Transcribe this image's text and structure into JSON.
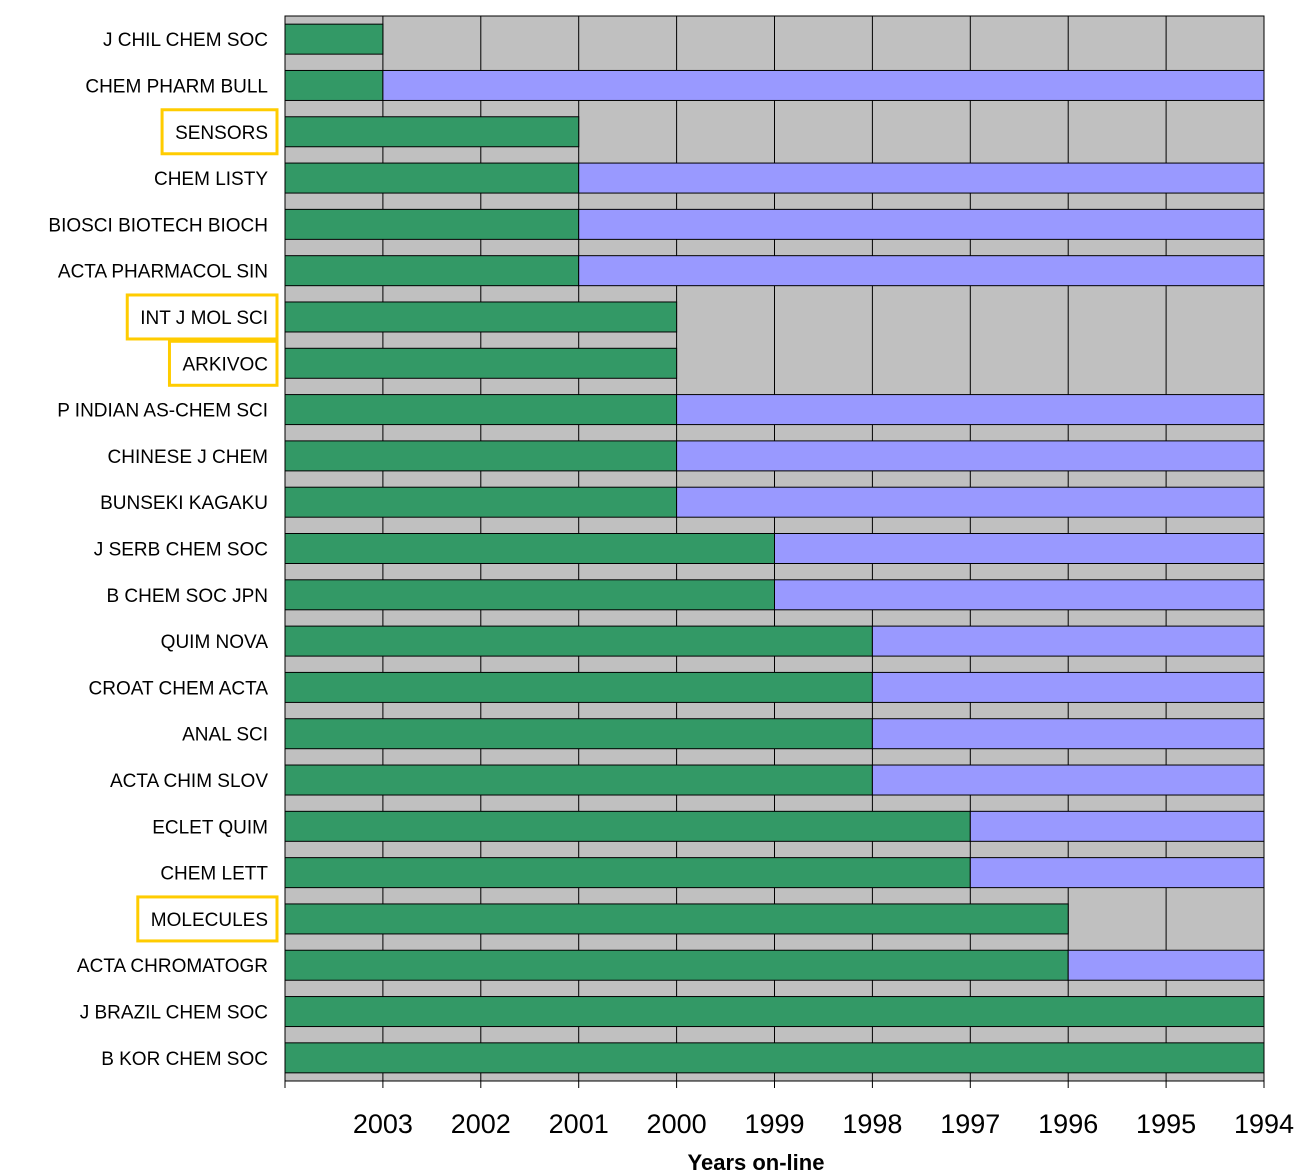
{
  "chart_data": {
    "type": "bar",
    "orientation": "horizontal",
    "title": "",
    "xlabel": "Years on-line",
    "ylabel": "",
    "x_ticks": [
      "2003",
      "2002",
      "2001",
      "2000",
      "1999",
      "1998",
      "1997",
      "1996",
      "1995",
      "1994"
    ],
    "xlim": [
      2004,
      1994
    ],
    "grid": true,
    "colors": {
      "plot_background": "#c0c0c0",
      "open_access": "#339966",
      "non_open_access": "#9999ff",
      "highlight_box": "#ffcc00"
    },
    "categories": [
      "J CHIL CHEM SOC",
      "CHEM PHARM BULL",
      "SENSORS",
      "CHEM LISTY",
      "BIOSCI BIOTECH BIOCH",
      "ACTA PHARMACOL SIN",
      "INT J MOL SCI",
      "ARKIVOC",
      "P INDIAN AS-CHEM SCI",
      "CHINESE J CHEM",
      "BUNSEKI KAGAKU",
      "J SERB CHEM SOC",
      "B CHEM SOC JPN",
      "QUIM NOVA",
      "CROAT CHEM ACTA",
      "ANAL SCI",
      "ACTA CHIM SLOV",
      "ECLET QUIM",
      "CHEM LETT",
      "MOLECULES",
      "ACTA CHROMATOGR",
      "J BRAZIL CHEM SOC",
      "B KOR CHEM SOC"
    ],
    "highlighted": [
      "SENSORS",
      "INT J MOL SCI",
      "ARKIVOC",
      "MOLECULES"
    ],
    "series": [
      {
        "color_key": "open_access",
        "start": 2004,
        "end": [
          2003,
          2003,
          2001,
          2001,
          2001,
          2001,
          2000,
          2000,
          2000,
          2000,
          2000,
          1999,
          1999,
          1998,
          1998,
          1998,
          1998,
          1997,
          1997,
          1996,
          1996,
          1994,
          1994
        ]
      },
      {
        "color_key": "non_open_access",
        "start": [
          2003,
          2003,
          2001,
          2001,
          2001,
          2001,
          2000,
          2000,
          2000,
          2000,
          2000,
          1999,
          1999,
          1998,
          1998,
          1998,
          1998,
          1997,
          1997,
          1996,
          1996,
          1994,
          1994
        ],
        "end": [
          null,
          1994,
          null,
          1994,
          1994,
          1994,
          null,
          null,
          1994,
          1994,
          1994,
          1994,
          1994,
          1994,
          1994,
          1994,
          1994,
          1994,
          1994,
          null,
          1994,
          null,
          null
        ]
      }
    ]
  }
}
